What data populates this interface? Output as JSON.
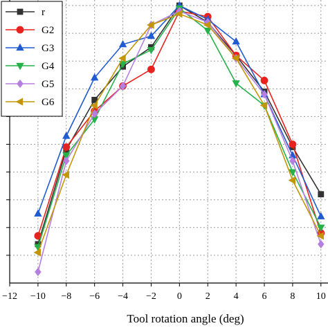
{
  "chart_data": {
    "type": "line",
    "xlabel": "Tool rotation angle (deg)",
    "ylabel": "",
    "xlim": [
      -12,
      10.5
    ],
    "ylim": [
      0,
      1.02
    ],
    "x_ticks": [
      -12,
      -10,
      -8,
      -6,
      -4,
      -2,
      0,
      2,
      4,
      6,
      8,
      10
    ],
    "x_tick_labels": [
      "−12",
      "−10",
      "−8",
      "−6",
      "−4",
      "−2",
      "0",
      "2",
      "4",
      "6",
      "8",
      "10"
    ],
    "y_gridlines": [
      0.1,
      0.2,
      0.3,
      0.4,
      0.5,
      0.6,
      0.7,
      0.8,
      0.9,
      1.0
    ],
    "grid": true,
    "legend_position": "top-left",
    "x": [
      -10,
      -8,
      -6,
      -4,
      -2,
      0,
      2,
      4,
      6,
      8,
      10
    ],
    "series": [
      {
        "name": "r",
        "color": "#333333",
        "marker": "square",
        "values": [
          0.14,
          0.48,
          0.66,
          0.78,
          0.85,
          1.0,
          0.94,
          0.82,
          0.69,
          0.49,
          0.32
        ]
      },
      {
        "name": "G2",
        "color": "#e8221f",
        "marker": "circle",
        "values": [
          0.17,
          0.49,
          0.62,
          0.71,
          0.77,
          0.98,
          0.96,
          0.82,
          0.73,
          0.5,
          0.18
        ]
      },
      {
        "name": "G3",
        "color": "#1f5bd1",
        "marker": "triangle-up",
        "values": [
          0.25,
          0.53,
          0.74,
          0.86,
          0.89,
          1.0,
          0.95,
          0.87,
          0.68,
          0.46,
          0.24
        ]
      },
      {
        "name": "G4",
        "color": "#27b14a",
        "marker": "triangle-down",
        "values": [
          0.13,
          0.46,
          0.59,
          0.79,
          0.84,
          0.99,
          0.91,
          0.72,
          0.64,
          0.4,
          0.2
        ]
      },
      {
        "name": "G5",
        "color": "#b57fe0",
        "marker": "diamond",
        "values": [
          0.04,
          0.44,
          0.61,
          0.71,
          0.93,
          0.98,
          0.94,
          0.81,
          0.68,
          0.44,
          0.14
        ]
      },
      {
        "name": "G6",
        "color": "#c29608",
        "marker": "triangle-left",
        "values": [
          0.11,
          0.39,
          0.64,
          0.81,
          0.93,
          0.97,
          0.93,
          0.81,
          0.64,
          0.37,
          0.17
        ]
      }
    ]
  }
}
